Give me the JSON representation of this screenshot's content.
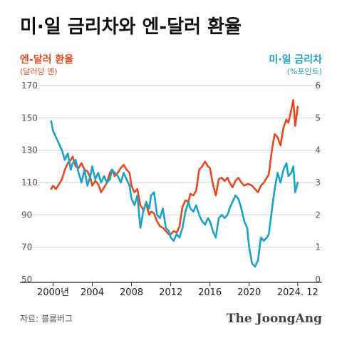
{
  "colors": {
    "yen": "#e8481e",
    "spread": "#1aa3c8",
    "grid": "#d6d6d6",
    "axis": "#222222"
  },
  "chart_data": {
    "type": "line",
    "title": "미·일 금리차와 엔-달러 환율",
    "left_axis": {
      "label": "엔-달러 환율",
      "unit": "(달러당 엔)",
      "ylim": [
        50,
        170
      ],
      "ticks": [
        170,
        150,
        130,
        110,
        90,
        70,
        50
      ]
    },
    "right_axis": {
      "label": "미·일 금리차",
      "unit": "(%포인트)",
      "ylim": [
        0,
        6
      ],
      "ticks": [
        6,
        5,
        4,
        3,
        2,
        1,
        0
      ]
    },
    "x_ticks": [
      {
        "value": 2000,
        "label": "2000년"
      },
      {
        "value": 2004,
        "label": "2004"
      },
      {
        "value": 2008,
        "label": "2008"
      },
      {
        "value": 2012,
        "label": "2012"
      },
      {
        "value": 2016,
        "label": "2016"
      },
      {
        "value": 2020,
        "label": "2020"
      },
      {
        "value": 2024.95,
        "label": "2024. 12"
      }
    ],
    "xlim": [
      1998.8,
      2025.4
    ],
    "grid": true,
    "series": [
      {
        "axis": "left",
        "color_key": "yen",
        "x": [
          1999.8,
          2000.0,
          2000.3,
          2000.6,
          2000.9,
          2001.2,
          2001.5,
          2001.8,
          2002.0,
          2002.3,
          2002.6,
          2002.9,
          2003.2,
          2003.5,
          2003.8,
          2004.0,
          2004.3,
          2004.6,
          2004.9,
          2005.2,
          2005.5,
          2005.8,
          2006.0,
          2006.3,
          2006.6,
          2006.9,
          2007.2,
          2007.5,
          2007.8,
          2008.0,
          2008.3,
          2008.6,
          2008.9,
          2009.2,
          2009.5,
          2009.8,
          2010.0,
          2010.3,
          2010.6,
          2010.9,
          2011.2,
          2011.5,
          2011.8,
          2012.0,
          2012.3,
          2012.6,
          2012.9,
          2013.2,
          2013.5,
          2013.8,
          2014.0,
          2014.3,
          2014.6,
          2014.9,
          2015.2,
          2015.5,
          2015.8,
          2016.0,
          2016.3,
          2016.6,
          2016.9,
          2017.2,
          2017.5,
          2017.8,
          2018.0,
          2018.3,
          2018.6,
          2018.9,
          2019.2,
          2019.5,
          2019.8,
          2020.0,
          2020.3,
          2020.6,
          2020.9,
          2021.2,
          2021.5,
          2021.8,
          2022.0,
          2022.3,
          2022.6,
          2022.9,
          2023.2,
          2023.5,
          2023.8,
          2024.0,
          2024.3,
          2024.5,
          2024.7,
          2024.95
        ],
        "values": [
          106,
          108,
          106,
          109,
          112,
          118,
          122,
          124,
          126,
          120,
          119,
          122,
          118,
          117,
          113,
          108,
          111,
          109,
          104,
          107,
          110,
          116,
          118,
          114,
          116,
          119,
          121,
          118,
          116,
          108,
          104,
          106,
          96,
          93,
          97,
          90,
          92,
          91,
          86,
          83,
          82,
          80,
          78,
          78,
          80,
          79,
          83,
          95,
          99,
          98,
          103,
          102,
          105,
          118,
          120,
          123,
          120,
          119,
          109,
          102,
          112,
          113,
          111,
          113,
          110,
          107,
          111,
          113,
          110,
          108,
          109,
          109,
          108,
          106,
          104,
          108,
          110,
          113,
          115,
          129,
          140,
          138,
          133,
          144,
          149,
          147,
          155,
          161,
          145,
          157
        ]
      },
      {
        "axis": "right",
        "color_key": "spread",
        "x": [
          1999.8,
          2000.0,
          2000.3,
          2000.6,
          2000.9,
          2001.2,
          2001.5,
          2001.8,
          2002.0,
          2002.3,
          2002.6,
          2002.9,
          2003.2,
          2003.5,
          2003.8,
          2004.0,
          2004.3,
          2004.6,
          2004.9,
          2005.2,
          2005.5,
          2005.8,
          2006.0,
          2006.3,
          2006.6,
          2006.9,
          2007.2,
          2007.5,
          2007.8,
          2008.0,
          2008.3,
          2008.6,
          2008.9,
          2009.2,
          2009.5,
          2009.8,
          2010.0,
          2010.3,
          2010.6,
          2010.9,
          2011.2,
          2011.5,
          2011.8,
          2012.0,
          2012.3,
          2012.6,
          2012.9,
          2013.2,
          2013.5,
          2013.8,
          2014.0,
          2014.3,
          2014.6,
          2014.9,
          2015.2,
          2015.5,
          2015.8,
          2016.0,
          2016.3,
          2016.6,
          2016.9,
          2017.2,
          2017.5,
          2017.8,
          2018.0,
          2018.3,
          2018.6,
          2018.9,
          2019.2,
          2019.5,
          2019.8,
          2020.0,
          2020.3,
          2020.6,
          2020.9,
          2021.2,
          2021.5,
          2021.8,
          2022.0,
          2022.3,
          2022.6,
          2022.9,
          2023.2,
          2023.5,
          2023.8,
          2024.0,
          2024.3,
          2024.5,
          2024.7,
          2024.95
        ],
        "values": [
          4.9,
          4.6,
          4.4,
          4.2,
          4.0,
          3.7,
          3.9,
          3.4,
          3.6,
          3.7,
          3.3,
          3.0,
          3.4,
          2.9,
          3.2,
          3.5,
          3.1,
          3.3,
          3.0,
          3.2,
          3.0,
          3.1,
          3.4,
          3.3,
          3.2,
          3.0,
          3.3,
          3.1,
          2.9,
          2.5,
          2.3,
          2.6,
          1.6,
          2.1,
          2.4,
          2.2,
          2.6,
          2.7,
          2.0,
          1.9,
          2.2,
          1.6,
          1.5,
          1.3,
          1.2,
          1.4,
          1.3,
          1.6,
          2.1,
          2.4,
          2.2,
          2.1,
          2.3,
          2.0,
          1.8,
          1.7,
          1.9,
          1.8,
          1.5,
          1.3,
          1.9,
          2.0,
          1.9,
          2.0,
          2.2,
          2.4,
          2.6,
          2.5,
          2.2,
          1.8,
          1.6,
          1.0,
          0.5,
          0.4,
          0.6,
          1.3,
          1.2,
          1.3,
          1.4,
          2.1,
          2.8,
          3.3,
          3.0,
          3.4,
          3.6,
          3.2,
          3.3,
          3.5,
          2.7,
          3.0
        ]
      }
    ]
  },
  "footer": {
    "source": "자료: 블룸버그",
    "brand": "The JoongAng"
  }
}
